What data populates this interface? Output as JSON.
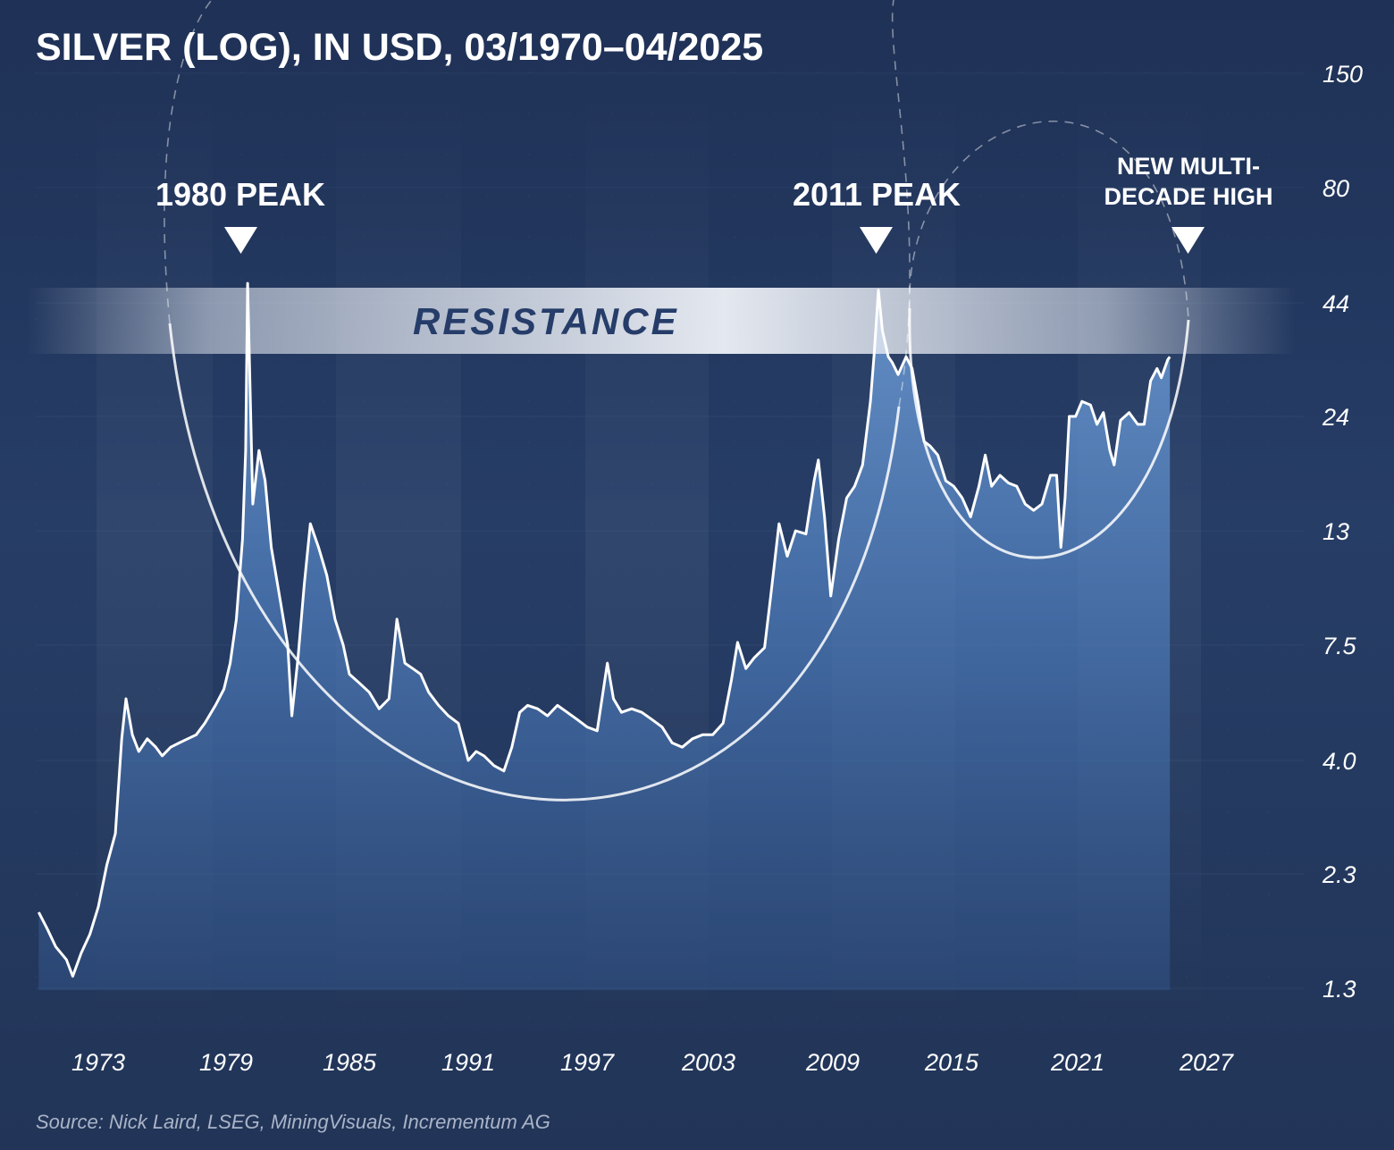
{
  "title": "SILVER (LOG), IN USD, 03/1970–04/2025",
  "source": "Source: Nick Laird, LSEG, MiningVisuals, Incrementum AG",
  "annotations": {
    "peak_1980": "1980 PEAK",
    "peak_2011": "2011 PEAK",
    "new_high_line1": "NEW MULTI-",
    "new_high_line2": "DECADE HIGH",
    "resistance": "RESISTANCE"
  },
  "colors": {
    "background": "#23365b",
    "area_fill": "#4a78b8",
    "line": "#ffffff",
    "resistance_band": "#e6ebf3",
    "resistance_text": "#263d6a"
  },
  "chart_data": {
    "type": "area",
    "y_scale": "log",
    "ylim": [
      1.1,
      160
    ],
    "xlim": [
      1970.0,
      2029.0
    ],
    "y_ticks": [
      "150",
      "80",
      "44",
      "24",
      "13",
      "7.5",
      "4.0",
      "2.3",
      "1.3"
    ],
    "x_ticks": [
      "1973",
      "1979",
      "1985",
      "1991",
      "1997",
      "2003",
      "2009",
      "2015",
      "2021",
      "2027"
    ],
    "grid": true,
    "legend": "none",
    "resistance_band": [
      36,
      48
    ],
    "series": [
      {
        "points": [
          [
            1970.2,
            1.9
          ],
          [
            1970.6,
            1.75
          ],
          [
            1971.0,
            1.6
          ],
          [
            1971.5,
            1.5
          ],
          [
            1971.8,
            1.38
          ],
          [
            1972.2,
            1.55
          ],
          [
            1972.6,
            1.7
          ],
          [
            1973.0,
            1.95
          ],
          [
            1973.4,
            2.4
          ],
          [
            1973.8,
            2.8
          ],
          [
            1974.1,
            4.5
          ],
          [
            1974.3,
            5.6
          ],
          [
            1974.6,
            4.6
          ],
          [
            1974.9,
            4.2
          ],
          [
            1975.3,
            4.5
          ],
          [
            1975.7,
            4.3
          ],
          [
            1976.0,
            4.1
          ],
          [
            1976.4,
            4.3
          ],
          [
            1976.8,
            4.4
          ],
          [
            1977.2,
            4.5
          ],
          [
            1977.6,
            4.6
          ],
          [
            1978.0,
            4.9
          ],
          [
            1978.5,
            5.4
          ],
          [
            1978.9,
            5.9
          ],
          [
            1979.2,
            6.8
          ],
          [
            1979.5,
            8.5
          ],
          [
            1979.8,
            12.5
          ],
          [
            1979.95,
            20.0
          ],
          [
            1980.05,
            48.7
          ],
          [
            1980.15,
            30.0
          ],
          [
            1980.3,
            15.0
          ],
          [
            1980.6,
            20.0
          ],
          [
            1980.9,
            17.0
          ],
          [
            1981.2,
            12.0
          ],
          [
            1981.6,
            9.5
          ],
          [
            1982.0,
            7.5
          ],
          [
            1982.2,
            5.1
          ],
          [
            1982.5,
            7.0
          ],
          [
            1982.8,
            10.0
          ],
          [
            1983.1,
            13.5
          ],
          [
            1983.5,
            12.0
          ],
          [
            1983.9,
            10.5
          ],
          [
            1984.3,
            8.5
          ],
          [
            1984.7,
            7.5
          ],
          [
            1985.0,
            6.4
          ],
          [
            1985.5,
            6.1
          ],
          [
            1986.0,
            5.8
          ],
          [
            1986.5,
            5.3
          ],
          [
            1987.0,
            5.6
          ],
          [
            1987.4,
            8.5
          ],
          [
            1987.8,
            6.8
          ],
          [
            1988.2,
            6.6
          ],
          [
            1988.6,
            6.4
          ],
          [
            1989.0,
            5.8
          ],
          [
            1989.5,
            5.4
          ],
          [
            1990.0,
            5.1
          ],
          [
            1990.5,
            4.9
          ],
          [
            1991.0,
            4.0
          ],
          [
            1991.4,
            4.2
          ],
          [
            1991.8,
            4.1
          ],
          [
            1992.3,
            3.9
          ],
          [
            1992.8,
            3.8
          ],
          [
            1993.2,
            4.3
          ],
          [
            1993.6,
            5.2
          ],
          [
            1994.0,
            5.4
          ],
          [
            1994.5,
            5.3
          ],
          [
            1995.0,
            5.1
          ],
          [
            1995.5,
            5.4
          ],
          [
            1996.0,
            5.2
          ],
          [
            1996.5,
            5.0
          ],
          [
            1997.0,
            4.8
          ],
          [
            1997.5,
            4.7
          ],
          [
            1998.0,
            6.8
          ],
          [
            1998.3,
            5.6
          ],
          [
            1998.7,
            5.2
          ],
          [
            1999.2,
            5.3
          ],
          [
            1999.7,
            5.2
          ],
          [
            2000.2,
            5.0
          ],
          [
            2000.7,
            4.8
          ],
          [
            2001.2,
            4.4
          ],
          [
            2001.7,
            4.3
          ],
          [
            2002.2,
            4.5
          ],
          [
            2002.7,
            4.6
          ],
          [
            2003.2,
            4.6
          ],
          [
            2003.7,
            4.9
          ],
          [
            2004.1,
            6.2
          ],
          [
            2004.4,
            7.6
          ],
          [
            2004.8,
            6.6
          ],
          [
            2005.2,
            7.0
          ],
          [
            2005.7,
            7.4
          ],
          [
            2006.0,
            9.5
          ],
          [
            2006.4,
            13.5
          ],
          [
            2006.8,
            11.5
          ],
          [
            2007.2,
            13.0
          ],
          [
            2007.7,
            12.8
          ],
          [
            2008.1,
            17.0
          ],
          [
            2008.3,
            19.0
          ],
          [
            2008.6,
            14.0
          ],
          [
            2008.9,
            9.5
          ],
          [
            2009.3,
            12.5
          ],
          [
            2009.7,
            15.5
          ],
          [
            2010.1,
            16.5
          ],
          [
            2010.5,
            18.5
          ],
          [
            2010.9,
            26.0
          ],
          [
            2011.1,
            34.0
          ],
          [
            2011.3,
            47.0
          ],
          [
            2011.5,
            38.0
          ],
          [
            2011.8,
            33.0
          ],
          [
            2012.0,
            32.0
          ],
          [
            2012.3,
            30.0
          ],
          [
            2012.7,
            33.0
          ],
          [
            2013.0,
            31.0
          ],
          [
            2013.3,
            26.0
          ],
          [
            2013.6,
            21.0
          ],
          [
            2013.9,
            20.5
          ],
          [
            2014.3,
            19.5
          ],
          [
            2014.7,
            17.0
          ],
          [
            2015.1,
            16.5
          ],
          [
            2015.5,
            15.5
          ],
          [
            2015.9,
            14.0
          ],
          [
            2016.3,
            16.5
          ],
          [
            2016.6,
            19.5
          ],
          [
            2016.9,
            16.5
          ],
          [
            2017.3,
            17.5
          ],
          [
            2017.7,
            16.8
          ],
          [
            2018.1,
            16.5
          ],
          [
            2018.5,
            15.0
          ],
          [
            2018.9,
            14.5
          ],
          [
            2019.3,
            15.0
          ],
          [
            2019.7,
            17.5
          ],
          [
            2020.0,
            17.5
          ],
          [
            2020.2,
            12.0
          ],
          [
            2020.4,
            15.5
          ],
          [
            2020.6,
            24.0
          ],
          [
            2020.9,
            24.0
          ],
          [
            2021.2,
            26.0
          ],
          [
            2021.6,
            25.5
          ],
          [
            2021.9,
            23.0
          ],
          [
            2022.2,
            24.5
          ],
          [
            2022.5,
            20.0
          ],
          [
            2022.7,
            18.5
          ],
          [
            2023.0,
            23.5
          ],
          [
            2023.4,
            24.5
          ],
          [
            2023.8,
            23.0
          ],
          [
            2024.1,
            23.0
          ],
          [
            2024.4,
            29.0
          ],
          [
            2024.7,
            31.0
          ],
          [
            2024.9,
            29.5
          ],
          [
            2025.2,
            32.5
          ],
          [
            2025.3,
            33.0
          ]
        ]
      }
    ]
  }
}
